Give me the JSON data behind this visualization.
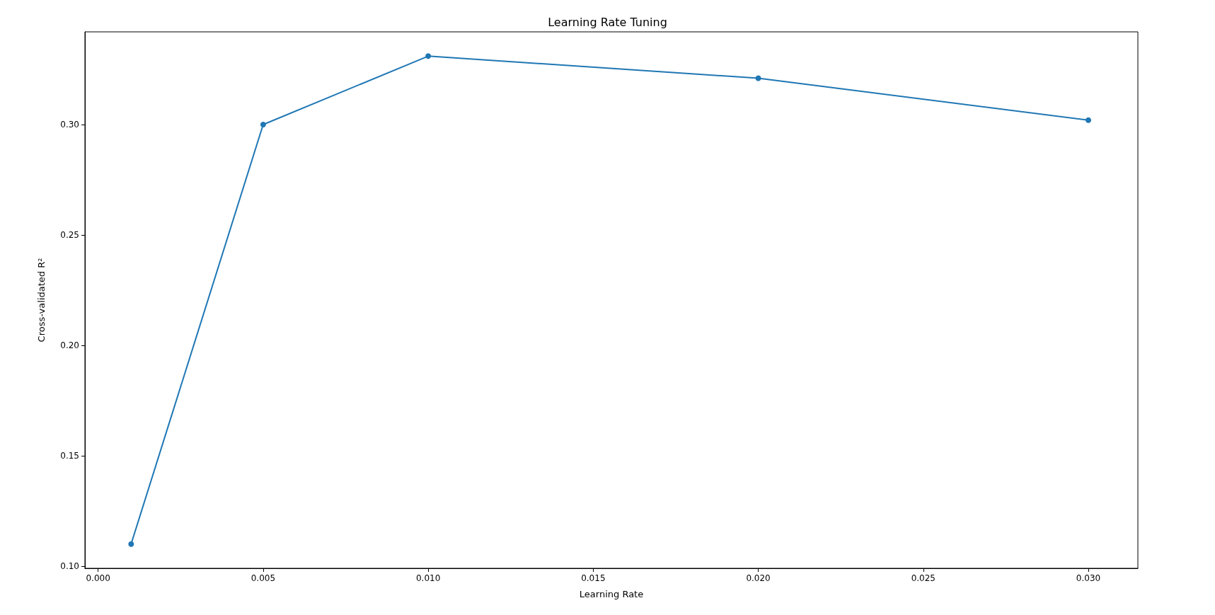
{
  "chart_data": {
    "type": "line",
    "title": "Learning Rate Tuning",
    "xlabel": "Learning Rate",
    "ylabel": "Cross-validated R²",
    "x": [
      0.001,
      0.005,
      0.01,
      0.02,
      0.03
    ],
    "series": [
      {
        "color": "#1f77b4",
        "values": [
          0.11,
          0.3,
          0.331,
          0.321,
          0.302
        ]
      }
    ],
    "xlim": [
      -0.0004,
      0.0315
    ],
    "xticks": [
      {
        "value": 0,
        "label": "0.000"
      },
      {
        "value": 0.005,
        "label": "0.005"
      },
      {
        "value": 0.01,
        "label": "0.010"
      },
      {
        "value": 0.015,
        "label": "0.015"
      },
      {
        "value": 0.02,
        "label": "0.020"
      },
      {
        "value": 0.025,
        "label": "0.025"
      },
      {
        "value": 0.03,
        "label": "0.030"
      }
    ],
    "ylim": [
      0.099,
      0.342
    ],
    "yticks": [
      {
        "value": 0.1,
        "label": "0.10"
      },
      {
        "value": 0.15,
        "label": "0.15"
      },
      {
        "value": 0.2,
        "label": "0.20"
      },
      {
        "value": 0.25,
        "label": "0.25"
      },
      {
        "value": 0.3,
        "label": "0.30"
      }
    ],
    "marker": "circle",
    "line_style": "solid",
    "grid": false
  }
}
